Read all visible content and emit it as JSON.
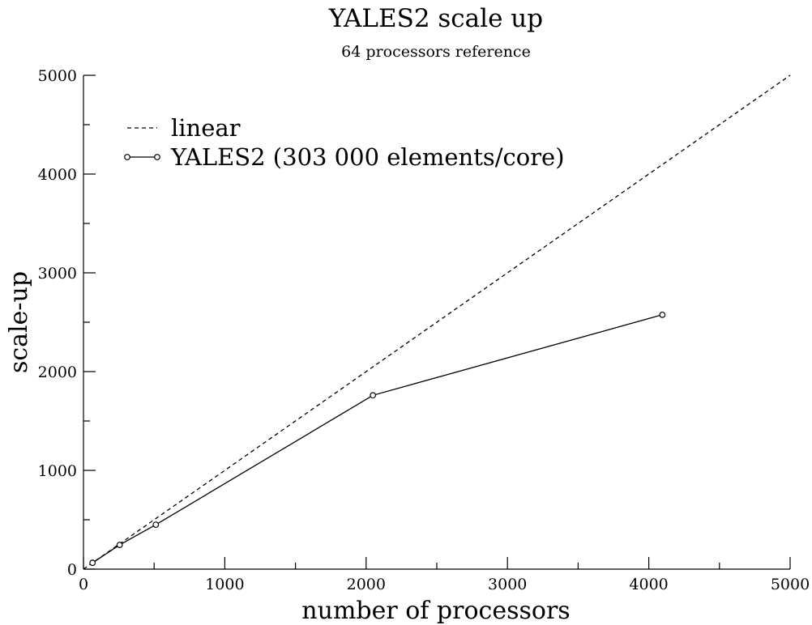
{
  "chart_data": {
    "type": "line",
    "title": "YALES2 scale up",
    "subtitle": "64 processors reference",
    "xlabel": "number of processors",
    "ylabel": "scale-up",
    "xlim": [
      0,
      5000
    ],
    "ylim": [
      0,
      5000
    ],
    "x_ticks": [
      "0",
      "1000",
      "2000",
      "3000",
      "4000",
      "5000"
    ],
    "y_ticks": [
      "0",
      "1000",
      "2000",
      "3000",
      "4000",
      "5000"
    ],
    "grid": false,
    "legend_placement": "top-left",
    "series": [
      {
        "name": "linear",
        "style": "dashed",
        "color": "#000000",
        "x": [
          0,
          5000
        ],
        "y": [
          0,
          5000
        ]
      },
      {
        "name": "YALES2 (303 000 elements/core)",
        "style": "solid",
        "marker": "circle",
        "color": "#000000",
        "x": [
          64,
          256,
          512,
          2048,
          4096
        ],
        "y": [
          64,
          245,
          450,
          1760,
          2575
        ]
      }
    ]
  }
}
